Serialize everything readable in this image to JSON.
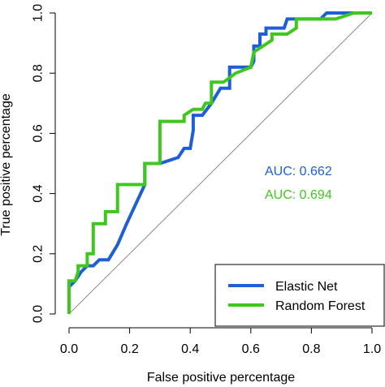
{
  "chart_data": {
    "type": "line",
    "xlabel": "False positive percentage",
    "ylabel": "True positive percentage",
    "xlim": [
      0,
      1
    ],
    "ylim": [
      0,
      1
    ],
    "xticks": [
      "0.0",
      "0.2",
      "0.4",
      "0.6",
      "0.8",
      "1.0"
    ],
    "yticks": [
      "0.0",
      "0.2",
      "0.4",
      "0.6",
      "0.8",
      "1.0"
    ],
    "grid": false,
    "legend_position": "bottom-right",
    "reference_line": {
      "x": [
        0,
        1
      ],
      "y": [
        0,
        1
      ],
      "color": "#888888"
    },
    "series": [
      {
        "name": "Elastic Net",
        "color": "#1f5fd6",
        "auc_label": "AUC: 0.662",
        "x": [
          0,
          0,
          0.02,
          0.04,
          0.06,
          0.08,
          0.1,
          0.13,
          0.16,
          0.19,
          0.25,
          0.25,
          0.3,
          0.36,
          0.38,
          0.4,
          0.41,
          0.41,
          0.44,
          0.47,
          0.5,
          0.53,
          0.53,
          0.56,
          0.6,
          0.61,
          0.61,
          0.63,
          0.63,
          0.65,
          0.65,
          0.67,
          0.71,
          0.72,
          0.72,
          0.83,
          0.85,
          0.97,
          1
        ],
        "y": [
          0,
          0.09,
          0.11,
          0.14,
          0.16,
          0.16,
          0.18,
          0.18,
          0.23,
          0.3,
          0.43,
          0.5,
          0.5,
          0.52,
          0.55,
          0.55,
          0.61,
          0.66,
          0.66,
          0.7,
          0.75,
          0.75,
          0.82,
          0.82,
          0.82,
          0.84,
          0.89,
          0.89,
          0.93,
          0.93,
          0.95,
          0.95,
          0.95,
          0.98,
          0.98,
          0.98,
          1,
          1,
          1
        ]
      },
      {
        "name": "Random Forest",
        "color": "#3ec81e",
        "auc_label": "AUC: 0.694",
        "x": [
          0,
          0,
          0.02,
          0.03,
          0.03,
          0.06,
          0.06,
          0.08,
          0.08,
          0.12,
          0.12,
          0.16,
          0.16,
          0.25,
          0.25,
          0.3,
          0.3,
          0.38,
          0.38,
          0.41,
          0.44,
          0.45,
          0.47,
          0.47,
          0.5,
          0.51,
          0.55,
          0.55,
          0.6,
          0.61,
          0.67,
          0.67,
          0.72,
          0.75,
          0.75,
          0.88,
          0.94,
          1
        ],
        "y": [
          0,
          0.11,
          0.11,
          0.14,
          0.16,
          0.16,
          0.2,
          0.2,
          0.3,
          0.3,
          0.34,
          0.34,
          0.43,
          0.43,
          0.5,
          0.5,
          0.64,
          0.64,
          0.66,
          0.68,
          0.68,
          0.7,
          0.7,
          0.77,
          0.77,
          0.77,
          0.8,
          0.8,
          0.82,
          0.87,
          0.91,
          0.93,
          0.93,
          0.95,
          0.98,
          0.98,
          1,
          1
        ]
      }
    ]
  }
}
